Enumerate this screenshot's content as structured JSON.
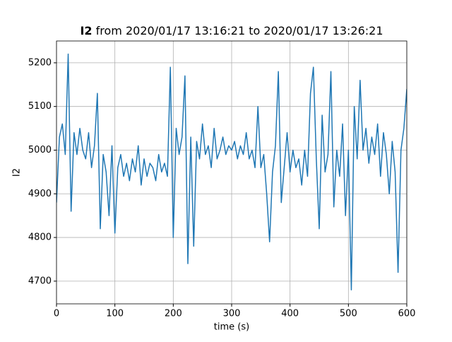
{
  "chart_data": {
    "type": "line",
    "title": {
      "bold": "I2",
      "rest": "from 2020/01/17 13:16:21 to 2020/01/17 13:26:21"
    },
    "xlabel": "time (s)",
    "ylabel": "I2",
    "grid": true,
    "xlim": [
      0,
      600
    ],
    "ylim": [
      4648,
      5250
    ],
    "xticks": [
      0,
      100,
      200,
      300,
      400,
      500,
      600
    ],
    "yticks": [
      4700,
      4800,
      4900,
      5000,
      5100,
      5200
    ],
    "x": [
      0,
      5,
      10,
      15,
      20,
      25,
      30,
      35,
      40,
      45,
      50,
      55,
      60,
      65,
      70,
      75,
      80,
      85,
      90,
      95,
      100,
      105,
      110,
      115,
      120,
      125,
      130,
      135,
      140,
      145,
      150,
      155,
      160,
      165,
      170,
      175,
      180,
      185,
      190,
      195,
      200,
      205,
      210,
      215,
      220,
      225,
      230,
      235,
      240,
      245,
      250,
      255,
      260,
      265,
      270,
      275,
      280,
      285,
      290,
      295,
      300,
      305,
      310,
      315,
      320,
      325,
      330,
      335,
      340,
      345,
      350,
      355,
      360,
      365,
      370,
      375,
      380,
      385,
      390,
      395,
      400,
      405,
      410,
      415,
      420,
      425,
      430,
      435,
      440,
      445,
      450,
      455,
      460,
      465,
      470,
      475,
      480,
      485,
      490,
      495,
      500,
      505,
      510,
      515,
      520,
      525,
      530,
      535,
      540,
      545,
      550,
      555,
      560,
      565,
      570,
      575,
      580,
      585,
      590,
      595,
      600
    ],
    "series": [
      {
        "color": "#1f77b4",
        "values": [
          4880,
          5030,
          5060,
          4990,
          5220,
          4860,
          5040,
          4990,
          5050,
          5000,
          4980,
          5040,
          4960,
          5010,
          5130,
          4820,
          4990,
          4950,
          4850,
          5010,
          4810,
          4960,
          4990,
          4940,
          4970,
          4930,
          4980,
          4950,
          5010,
          4920,
          4980,
          4940,
          4970,
          4960,
          4930,
          4990,
          4950,
          4970,
          4940,
          5190,
          4800,
          5050,
          4990,
          5030,
          5170,
          4740,
          5030,
          4780,
          5020,
          4980,
          5060,
          4990,
          5010,
          4960,
          5050,
          4980,
          5000,
          5030,
          4990,
          5010,
          5000,
          5020,
          4980,
          5010,
          4990,
          5040,
          4980,
          5000,
          4960,
          5100,
          4960,
          4990,
          4900,
          4790,
          4950,
          5010,
          5180,
          4880,
          4960,
          5040,
          4950,
          5000,
          4960,
          4980,
          4920,
          5000,
          4940,
          5130,
          5190,
          4980,
          4820,
          5080,
          4950,
          4990,
          5180,
          4870,
          5000,
          4940,
          5060,
          4850,
          5000,
          4680,
          5100,
          4980,
          5160,
          5000,
          5050,
          4970,
          5030,
          4990,
          5060,
          4940,
          5040,
          4990,
          4900,
          5020,
          4950,
          4720,
          5000,
          5050,
          5140
        ]
      }
    ]
  }
}
